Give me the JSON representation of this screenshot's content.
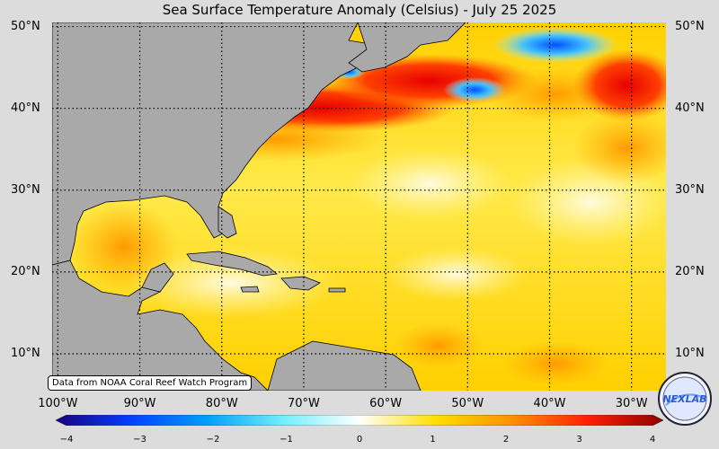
{
  "title": "Sea Surface Temperature Anomaly (Celsius) - July 25 2025",
  "source_note": "Data from NOAA Coral Reef Watch Program",
  "logo_text": "NEXLAB",
  "map": {
    "lon_range": [
      -100.7,
      -25.8
    ],
    "lat_range": [
      5.5,
      50.5
    ],
    "lat_labels": [
      "50°N",
      "40°N",
      "30°N",
      "20°N",
      "10°N"
    ],
    "lat_values": [
      50,
      40,
      30,
      20,
      10
    ],
    "lon_labels": [
      "100°W",
      "90°W",
      "80°W",
      "70°W",
      "60°W",
      "50°W",
      "40°W",
      "30°W"
    ],
    "lon_values": [
      -100,
      -90,
      -80,
      -70,
      -60,
      -50,
      -40,
      -30
    ],
    "land_color": "#a9a9a9",
    "background_color": "#dcdcdc"
  },
  "colorbar": {
    "min": -4,
    "max": 4,
    "tick_labels": [
      "−4",
      "−3",
      "−2",
      "−1",
      "0",
      "1",
      "2",
      "3",
      "4"
    ],
    "tick_values": [
      -4,
      -3,
      -2,
      -1,
      0,
      1,
      2,
      3,
      4
    ],
    "colors": [
      "#1a0080",
      "#0040ff",
      "#00a0ff",
      "#70f0ff",
      "#ffffff",
      "#ffe000",
      "#ff9000",
      "#ff2000",
      "#900000"
    ]
  }
}
